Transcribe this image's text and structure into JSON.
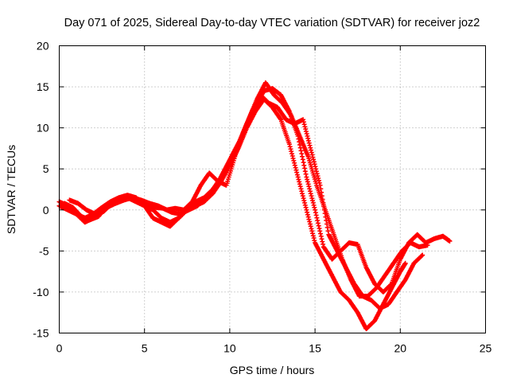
{
  "chart_data": {
    "type": "scatter",
    "title": "Day 071 of 2025, Sidereal Day-to-day VTEC variation (SDTVAR) for receiver joz2",
    "xlabel": "GPS time / hours",
    "ylabel": "SDTVAR / TECUs",
    "xlim": [
      0,
      25
    ],
    "ylim": [
      -15,
      20
    ],
    "xticks": [
      "0",
      "5",
      "10",
      "15",
      "20",
      "25"
    ],
    "yticks": [
      "-15",
      "-10",
      "-5",
      "0",
      "5",
      "10",
      "15",
      "20"
    ],
    "grid": true,
    "marker": "plus",
    "color": "#ff0000",
    "series": [
      {
        "x": [
          0,
          0.5,
          1,
          1.5,
          2,
          2.5,
          3,
          3.5,
          4,
          4.5,
          5,
          5.5,
          6,
          6.5,
          7,
          7.5,
          8,
          8.5,
          9,
          9.5,
          10,
          10.5,
          11,
          11.5,
          12,
          12.5,
          13,
          13.5,
          14,
          14.5,
          15,
          15.5,
          16,
          16.5,
          17,
          17.5,
          18,
          18.5,
          19,
          19.5,
          20,
          20.5,
          21,
          21.5,
          22,
          22.5,
          22.9
        ],
        "y": [
          1,
          0.5,
          -0.5,
          -1,
          -0.5,
          0.3,
          1,
          1.5,
          1.8,
          1.5,
          0.5,
          0,
          -1,
          -1.5,
          -1,
          0,
          1,
          1.5,
          2.5,
          4,
          6,
          8,
          10.5,
          12.5,
          14.5,
          14.8,
          14,
          12,
          9,
          4,
          0,
          -4.5,
          -6,
          -5,
          -4,
          -4.2,
          -7,
          -9,
          -10,
          -9,
          -6,
          -4,
          -3,
          -4,
          -3.5,
          -3.2,
          -3.8
        ]
      },
      {
        "x": [
          0,
          0.5,
          1,
          1.5,
          2,
          2.5,
          3,
          3.5,
          4,
          4.5,
          5,
          5.5,
          6,
          6.5,
          7,
          7.5,
          8,
          8.5,
          9,
          9.5,
          10,
          10.5,
          11,
          11.5,
          12,
          12.5,
          13,
          13.5,
          14,
          14.5,
          15,
          15.5,
          16,
          16.5,
          17,
          17.5,
          18,
          18.5,
          19,
          19.5,
          20,
          20.3
        ],
        "y": [
          0.5,
          0,
          -0.5,
          -1.5,
          -1,
          0,
          0.5,
          1,
          1.5,
          1,
          0.5,
          -1,
          -1.5,
          -2,
          -1,
          0,
          0.5,
          1,
          2,
          3.5,
          5.5,
          7.5,
          10,
          12,
          13.5,
          12.5,
          11,
          8,
          4,
          0,
          -4,
          -6,
          -8,
          -10,
          -11,
          -12.5,
          -14.5,
          -13.5,
          -11.5,
          -9.5,
          -7.5,
          -6.5
        ]
      },
      {
        "x": [
          0.3,
          0.8,
          1.3,
          1.8,
          2.3,
          2.8,
          3.3,
          3.8,
          4.3,
          4.8,
          5.3,
          5.8,
          6.3,
          6.8,
          7.3,
          7.8,
          8.3,
          8.8,
          9.3,
          9.8,
          10.3,
          10.8,
          11.3,
          11.8,
          12.3,
          12.8,
          13.3,
          13.8,
          14.3,
          14.8,
          15.3,
          15.8,
          16.3,
          16.8,
          17.3,
          17.8,
          18.3,
          18.8,
          19.3,
          19.8,
          20.3,
          20.8,
          21.3
        ],
        "y": [
          0.8,
          0.3,
          -0.8,
          -1.2,
          -0.8,
          0.5,
          0.8,
          1.2,
          1.5,
          1.2,
          0.8,
          0.5,
          0,
          0.2,
          0,
          1,
          3,
          4.5,
          3.5,
          3,
          6.5,
          9.5,
          12,
          14,
          13,
          12.5,
          11,
          10.5,
          11,
          7,
          3,
          -3,
          -5,
          -7,
          -9,
          -10.5,
          -11,
          -12,
          -11.5,
          -10,
          -8.5,
          -6.5,
          -5.5
        ]
      },
      {
        "x": [
          0.6,
          1.1,
          1.6,
          2.1,
          2.6,
          3.1,
          3.6,
          4.1,
          4.6,
          5.1,
          5.6,
          6.1,
          6.6,
          7.1,
          7.6,
          8.1,
          8.6,
          9.1,
          9.6,
          10.1,
          10.6,
          11.1,
          11.6,
          12.1,
          12.6,
          13.1,
          13.6,
          14.1,
          14.6,
          15.1,
          15.6,
          16.1,
          16.6,
          17.1,
          17.6,
          18.1,
          18.6,
          19.1,
          19.6,
          20.1,
          20.6,
          21.1,
          21.6
        ],
        "y": [
          1.2,
          0.8,
          0,
          -0.5,
          -0.2,
          0.8,
          1.3,
          1.6,
          1.2,
          0.6,
          0.3,
          0.2,
          -0.3,
          -0.5,
          0,
          0.5,
          1.5,
          2.5,
          4.5,
          6.5,
          8.5,
          11,
          13.5,
          15.5,
          14,
          13,
          11.5,
          9,
          6.5,
          3,
          0,
          -3,
          -6,
          -8.5,
          -10.5,
          -10.5,
          -9.5,
          -8,
          -6.5,
          -5,
          -4,
          -4.5,
          -4.3
        ]
      }
    ]
  }
}
